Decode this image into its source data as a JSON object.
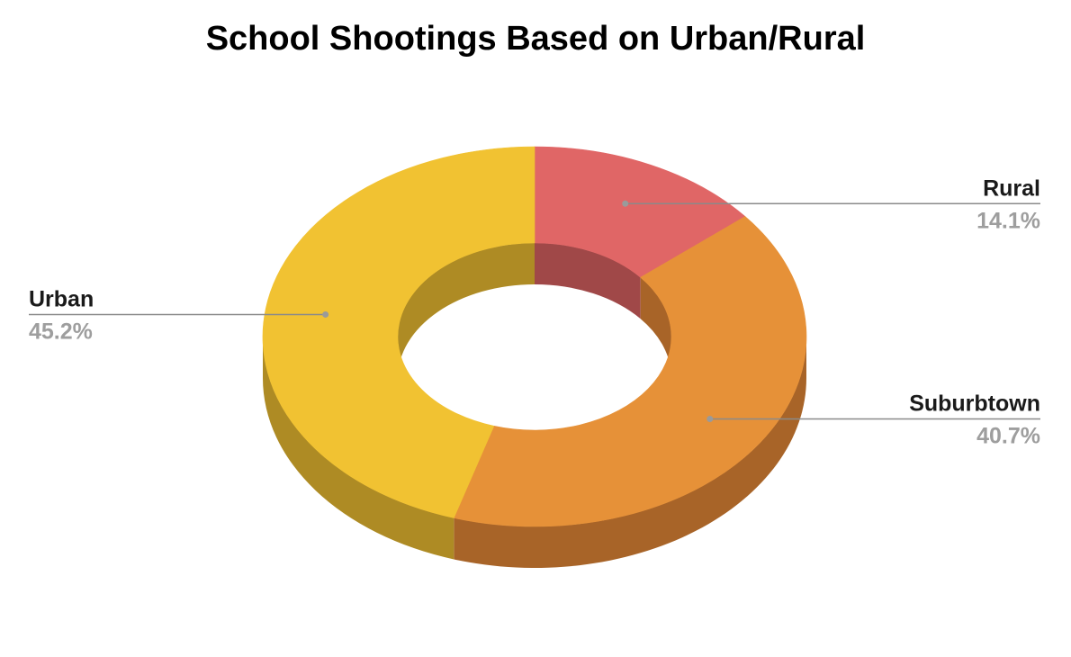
{
  "chart_data": {
    "type": "pie",
    "style": "3d-donut",
    "title": "School Shootings Based on Urban/Rural",
    "slices": [
      {
        "label": "Rural",
        "value": 14.1,
        "value_label": "14.1%",
        "color": "#E06666",
        "side_color": "#A04848",
        "legend": "right"
      },
      {
        "label": "Suburbtown",
        "value": 40.7,
        "value_label": "40.7%",
        "color": "#E69138",
        "side_color": "#A86428",
        "legend": "right"
      },
      {
        "label": "Urban",
        "value": 45.2,
        "value_label": "45.2%",
        "color": "#F1C232",
        "side_color": "#AE8B24",
        "legend": "left"
      }
    ],
    "start": "top",
    "direction": "clockwise"
  }
}
